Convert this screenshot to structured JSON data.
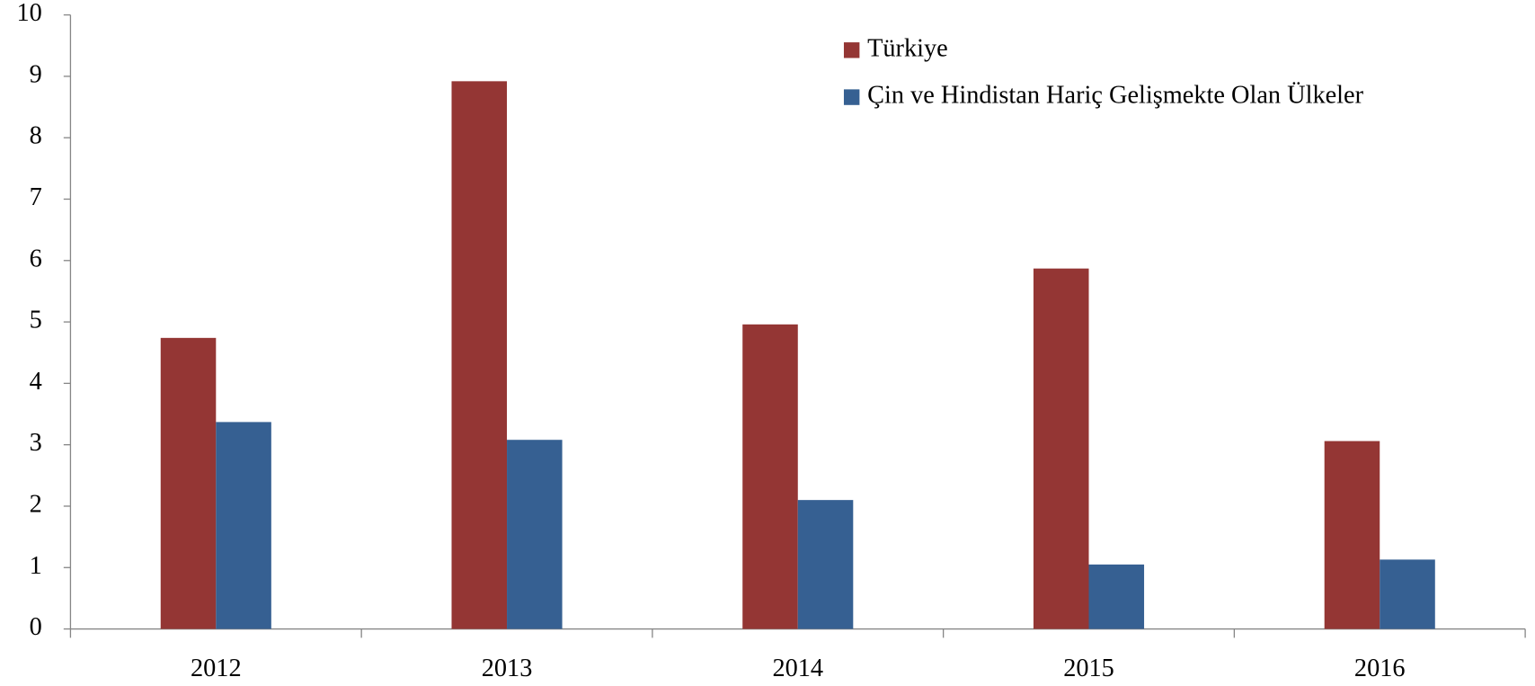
{
  "chart_data": {
    "type": "bar",
    "categories": [
      "2012",
      "2013",
      "2014",
      "2015",
      "2016"
    ],
    "series": [
      {
        "name": "Türkiye",
        "color": "#943634",
        "values": [
          4.74,
          8.92,
          4.96,
          5.87,
          3.06
        ]
      },
      {
        "name": "Çin ve Hindistan Hariç Gelişmekte Olan Ülkeler",
        "color": "#366092",
        "values": [
          3.37,
          3.08,
          2.1,
          1.05,
          1.13
        ]
      }
    ],
    "ylim": [
      0,
      10
    ],
    "yticks": [
      0,
      1,
      2,
      3,
      4,
      5,
      6,
      7,
      8,
      9,
      10
    ],
    "grid": false,
    "legend": "top-right"
  }
}
